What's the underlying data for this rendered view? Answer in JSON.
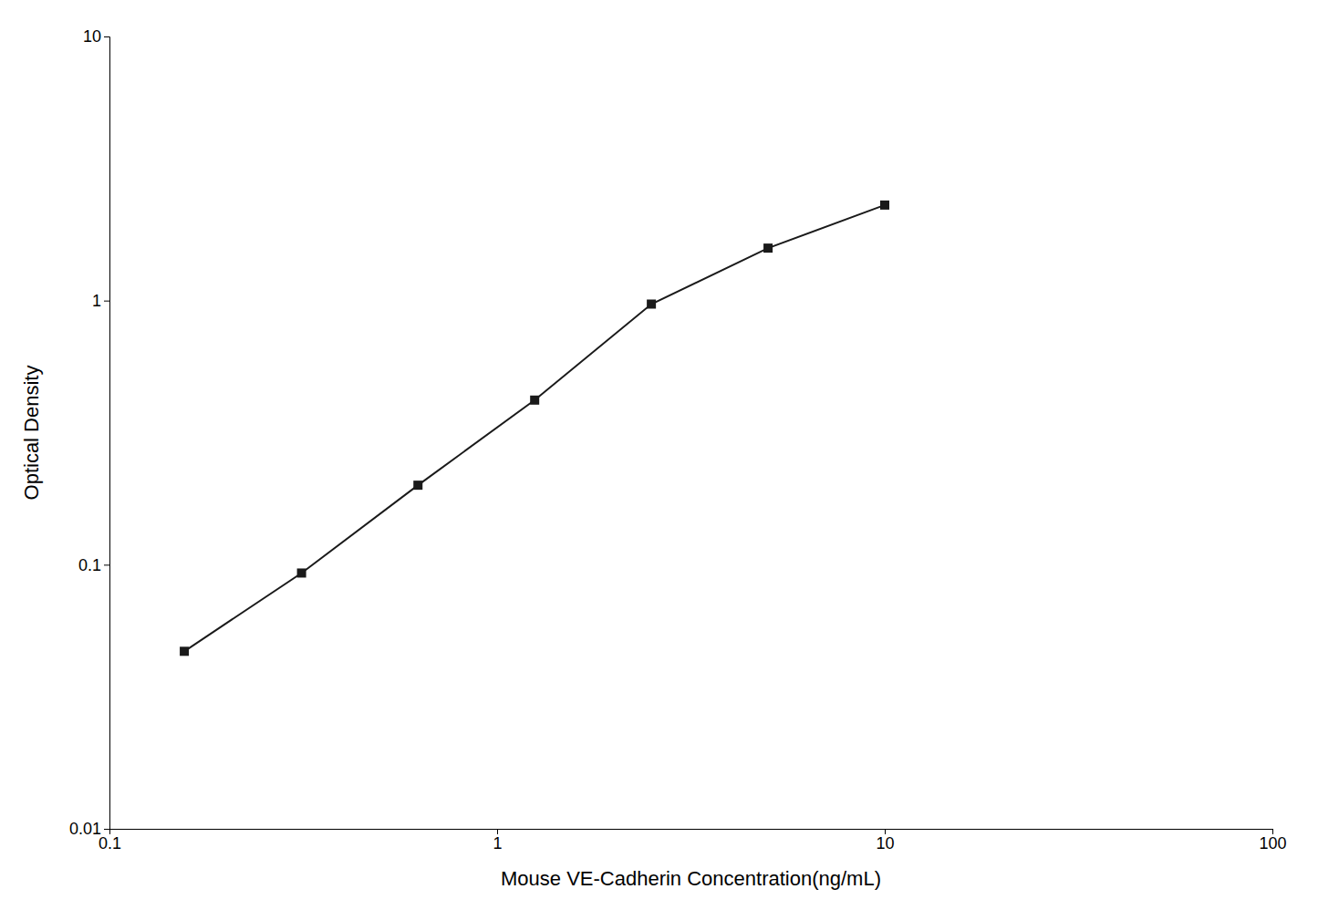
{
  "chart_data": {
    "type": "line",
    "x": [
      0.156,
      0.313,
      0.625,
      1.25,
      2.5,
      5.0,
      10.0
    ],
    "values": [
      0.047,
      0.093,
      0.2,
      0.42,
      0.97,
      1.58,
      2.3
    ],
    "xlabel": "Mouse VE-Cadherin Concentration(ng/mL)",
    "ylabel": "Optical Density",
    "xlim": [
      0.1,
      100
    ],
    "ylim": [
      0.01,
      10
    ],
    "xticks": [
      0.1,
      1,
      10,
      100
    ],
    "yticks": [
      0.01,
      0.1,
      1,
      10
    ],
    "log": true,
    "grid": false,
    "color": "#1a1a1a",
    "marker": "square"
  }
}
